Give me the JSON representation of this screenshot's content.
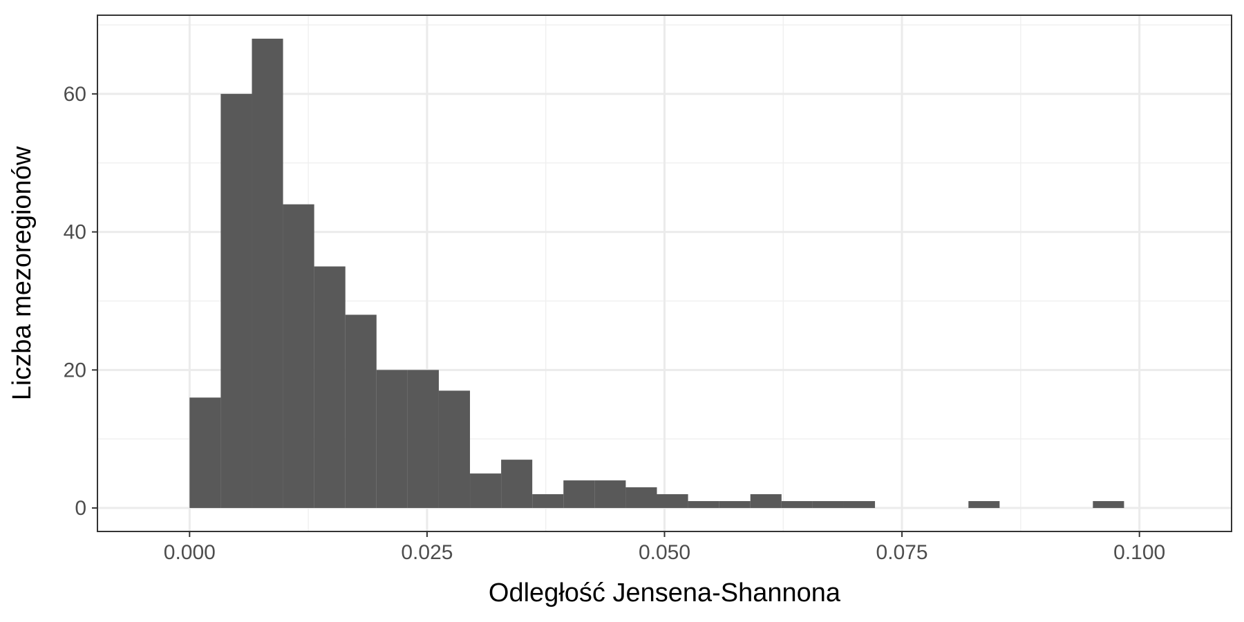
{
  "chart_data": {
    "type": "bar",
    "subtype": "histogram",
    "title": "",
    "xlabel": "Odległość Jensena-Shannona",
    "ylabel": "Liczba mezoregionów",
    "xlim": [
      -0.0097,
      0.1097
    ],
    "ylim": [
      -3.4,
      71.4
    ],
    "x_ticks": [
      0.0,
      0.025,
      0.05,
      0.075,
      0.1
    ],
    "x_tick_labels": [
      "0.000",
      "0.025",
      "0.050",
      "0.075",
      "0.100"
    ],
    "y_ticks": [
      0,
      20,
      40,
      60
    ],
    "y_tick_labels": [
      "0",
      "20",
      "40",
      "60"
    ],
    "x_minor_grid": [
      0.0125,
      0.0375,
      0.0625,
      0.0875
    ],
    "y_minor_grid": [
      10,
      30,
      50,
      70
    ],
    "grid": true,
    "bar_color": "#595959",
    "bins": [
      {
        "start": 0.0,
        "end": 0.00328,
        "count": 16
      },
      {
        "start": 0.00328,
        "end": 0.00656,
        "count": 60
      },
      {
        "start": 0.00656,
        "end": 0.00984,
        "count": 68
      },
      {
        "start": 0.00984,
        "end": 0.01312,
        "count": 44
      },
      {
        "start": 0.01312,
        "end": 0.0164,
        "count": 35
      },
      {
        "start": 0.0164,
        "end": 0.01968,
        "count": 28
      },
      {
        "start": 0.01968,
        "end": 0.02296,
        "count": 20
      },
      {
        "start": 0.02296,
        "end": 0.02624,
        "count": 20
      },
      {
        "start": 0.02624,
        "end": 0.02952,
        "count": 17
      },
      {
        "start": 0.02952,
        "end": 0.0328,
        "count": 5
      },
      {
        "start": 0.0328,
        "end": 0.03608,
        "count": 7
      },
      {
        "start": 0.03608,
        "end": 0.03936,
        "count": 2
      },
      {
        "start": 0.03936,
        "end": 0.04264,
        "count": 4
      },
      {
        "start": 0.04264,
        "end": 0.04592,
        "count": 4
      },
      {
        "start": 0.04592,
        "end": 0.0492,
        "count": 3
      },
      {
        "start": 0.0492,
        "end": 0.05248,
        "count": 2
      },
      {
        "start": 0.05248,
        "end": 0.05576,
        "count": 1
      },
      {
        "start": 0.05576,
        "end": 0.05904,
        "count": 1
      },
      {
        "start": 0.05904,
        "end": 0.06232,
        "count": 2
      },
      {
        "start": 0.06232,
        "end": 0.0656,
        "count": 1
      },
      {
        "start": 0.0656,
        "end": 0.06888,
        "count": 1
      },
      {
        "start": 0.06888,
        "end": 0.07216,
        "count": 1
      },
      {
        "start": 0.082,
        "end": 0.08528,
        "count": 1
      },
      {
        "start": 0.0951,
        "end": 0.09838,
        "count": 1
      }
    ]
  }
}
